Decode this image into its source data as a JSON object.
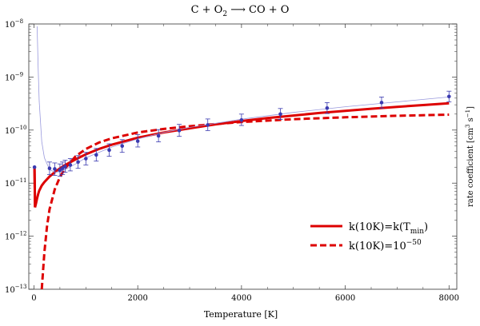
{
  "chart_data": {
    "type": "line",
    "title": {
      "lhs": "C + O",
      "o_sub": "2",
      "arrow": "⟶",
      "rhs": "CO + O"
    },
    "xlabel": "Temperature [K]",
    "ylabel": {
      "prefix": "rate coefficient  [cm",
      "exp1": "3",
      "mid": " s",
      "exp2": "−1",
      "suffix": "]"
    },
    "x_scale": "linear",
    "y_scale": "log",
    "xlim": [
      -100,
      8150
    ],
    "ylim": [
      1e-13,
      1e-08
    ],
    "x_ticks": [
      0,
      2000,
      4000,
      6000,
      8000
    ],
    "x_tick_labels": [
      "0",
      "2000",
      "4000",
      "6000",
      "8000"
    ],
    "y_ticks": [
      -13,
      -12,
      -11,
      -10,
      -9,
      -8
    ],
    "y_tick_labels": [
      {
        "base": "10",
        "exp": "−13"
      },
      {
        "base": "10",
        "exp": "−12"
      },
      {
        "base": "10",
        "exp": "−11"
      },
      {
        "base": "10",
        "exp": "−10"
      },
      {
        "base": "10",
        "exp": "−9"
      },
      {
        "base": "10",
        "exp": "−8"
      }
    ],
    "grid": false,
    "legend_position": "bottom-right",
    "series": [
      {
        "name": "k(10K)=k(T_min)",
        "label": {
          "text": "k(10K)=k(T",
          "sub": "min",
          "close": ")"
        },
        "style": "solid",
        "color": "#dd0000",
        "x": [
          10,
          20,
          40,
          60,
          80,
          100,
          150,
          200,
          300,
          400,
          500,
          600,
          800,
          1000,
          1250,
          1500,
          2000,
          2500,
          3000,
          3500,
          4000,
          4500,
          5000,
          5500,
          6000,
          6500,
          7000,
          7500,
          8000
        ],
        "y": [
          2e-11,
          3.5e-12,
          4.2e-12,
          5.2e-12,
          6.2e-12,
          7.2e-12,
          9e-12,
          1.05e-11,
          1.33e-11,
          1.6e-11,
          1.9e-11,
          2.2e-11,
          2.8e-11,
          3.5e-11,
          4.4e-11,
          5.3e-11,
          7.2e-11,
          9e-11,
          1.08e-10,
          1.28e-10,
          1.48e-10,
          1.68e-10,
          1.88e-10,
          2.1e-10,
          2.3e-10,
          2.52e-10,
          2.74e-10,
          2.96e-10,
          3.2e-10
        ]
      },
      {
        "name": "k(10K)=10^-50",
        "label": {
          "text": "k(10K)=10",
          "exp": "−50"
        },
        "style": "dashed",
        "color": "#dd0000",
        "x": [
          150,
          175,
          200,
          250,
          300,
          400,
          500,
          600,
          800,
          1000,
          1250,
          1500,
          2000,
          2500,
          3000,
          3500,
          4000,
          5000,
          6000,
          7000,
          8000
        ],
        "y": [
          1e-13,
          2.2e-13,
          5e-13,
          1.5e-12,
          3.2e-12,
          7.6e-12,
          1.3e-11,
          1.9e-11,
          3.2e-11,
          4.4e-11,
          5.8e-11,
          7e-11,
          9e-11,
          1.05e-10,
          1.18e-10,
          1.3e-10,
          1.42e-10,
          1.6e-10,
          1.74e-10,
          1.86e-10,
          1.95e-10
        ]
      },
      {
        "name": "fit",
        "style": "thin",
        "color": "#9999dd",
        "x": [
          60,
          80,
          100,
          150,
          200,
          300,
          400,
          500,
          600,
          800,
          1000,
          1500,
          2000,
          2500,
          3000,
          4000,
          5000,
          6000,
          7000,
          8000
        ],
        "y": [
          9e-09,
          1.5e-09,
          3.5e-10,
          6e-11,
          3e-11,
          1.8e-11,
          1.6e-11,
          1.65e-11,
          1.8e-11,
          2.3e-11,
          3e-11,
          4.8e-11,
          6.8e-11,
          9e-11,
          1.12e-10,
          1.6e-10,
          2.15e-10,
          2.75e-10,
          3.4e-10,
          4.2e-10
        ]
      }
    ],
    "points": {
      "color": "#3a3ab0",
      "x": [
        300,
        400,
        500,
        550,
        600,
        700,
        850,
        1000,
        1200,
        1450,
        1700,
        2000,
        2400,
        2800,
        3350,
        4000,
        4750,
        5650,
        6700,
        8000
      ],
      "y": [
        1.9e-11,
        1.85e-11,
        1.75e-11,
        1.9e-11,
        2.05e-11,
        2.2e-11,
        2.5e-11,
        2.9e-11,
        3.4e-11,
        4.2e-11,
        5e-11,
        6.2e-11,
        7.8e-11,
        9.8e-11,
        1.25e-10,
        1.55e-10,
        2e-10,
        2.6e-10,
        3.3e-10,
        4.3e-10
      ],
      "err_low": [
        1.45e-11,
        1.4e-11,
        1.35e-11,
        1.45e-11,
        1.6e-11,
        1.7e-11,
        1.9e-11,
        2.2e-11,
        2.6e-11,
        3.2e-11,
        3.8e-11,
        4.8e-11,
        6e-11,
        7.6e-11,
        9.8e-11,
        1.22e-10,
        1.58e-10,
        2.05e-10,
        2.6e-10,
        3.4e-10
      ],
      "err_high": [
        2.5e-11,
        2.4e-11,
        2.3e-11,
        2.5e-11,
        2.7e-11,
        2.9e-11,
        3.3e-11,
        3.8e-11,
        4.5e-11,
        5.5e-11,
        6.6e-11,
        8.2e-11,
        1.02e-10,
        1.28e-10,
        1.62e-10,
        2e-10,
        2.55e-10,
        3.3e-10,
        4.2e-10,
        5.4e-10
      ],
      "extra": {
        "x": 10,
        "y": 2e-11
      }
    }
  }
}
